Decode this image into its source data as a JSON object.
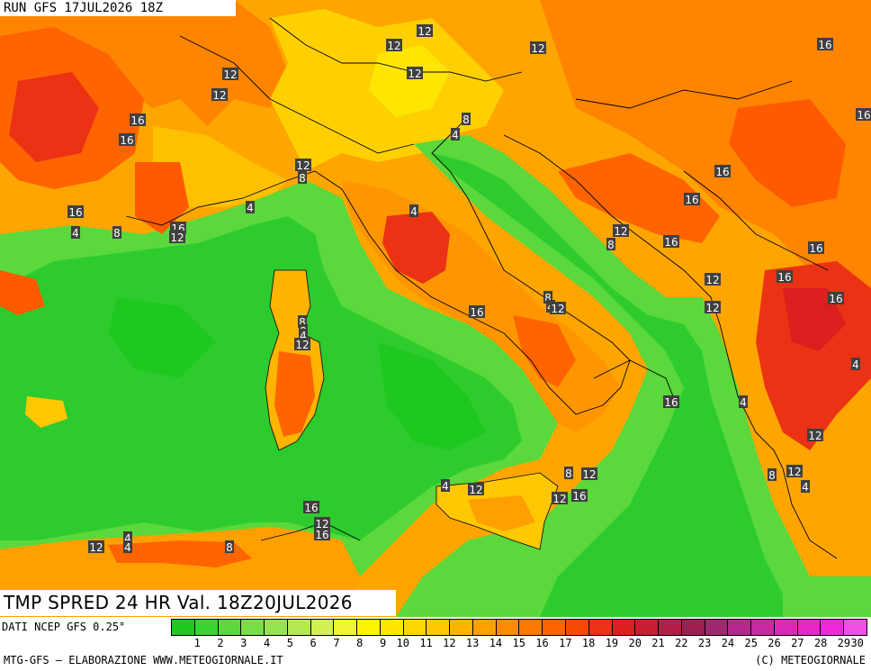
{
  "header": {
    "run_title": "RUN GFS 17JUL2026 18Z",
    "variable_title": "TMP SPRED 24 HR Val. 18Z20JUL2026"
  },
  "legend": {
    "source": "DATI NCEP GFS 0.25°",
    "values": [
      1,
      2,
      3,
      4,
      5,
      6,
      7,
      8,
      9,
      10,
      11,
      12,
      13,
      14,
      15,
      16,
      17,
      18,
      19,
      20,
      21,
      22,
      23,
      24,
      25,
      26,
      27,
      28,
      29,
      30
    ],
    "colors": [
      "#1ec81e",
      "#3cd232",
      "#5ad83c",
      "#78de46",
      "#96e450",
      "#b4ea50",
      "#d2f050",
      "#f0f532",
      "#fff500",
      "#ffe600",
      "#ffd700",
      "#ffc800",
      "#ffb400",
      "#ffa000",
      "#ff8c00",
      "#ff7800",
      "#ff6400",
      "#f54a00",
      "#eb3214",
      "#dc1e1e",
      "#c81e32",
      "#b41e46",
      "#a01e50",
      "#a0286e",
      "#b4288c",
      "#c828a0",
      "#dc28b4",
      "#e628c8",
      "#f028dc",
      "#f050e6"
    ]
  },
  "footer": {
    "left": "MTG-GFS — ELABORAZIONE WWW.METEOGIORNALE.IT",
    "right": "(C) METEOGIORNALE"
  },
  "contour_labels": [
    "12",
    "12",
    "12",
    "12",
    "12",
    "12",
    "16",
    "16",
    "16",
    "16",
    "12",
    "8",
    "4",
    "8",
    "4",
    "16",
    "4",
    "8",
    "16",
    "8",
    "4",
    "12",
    "4",
    "16",
    "16",
    "16",
    "12",
    "8",
    "16",
    "12",
    "16",
    "16",
    "12",
    "16",
    "8",
    "4",
    "12",
    "8",
    "8",
    "4",
    "12",
    "4",
    "16",
    "4",
    "12",
    "8",
    "12",
    "4",
    "8",
    "12",
    "12",
    "16",
    "12",
    "4",
    "16",
    "12",
    "16",
    "4",
    "4",
    "12",
    "8"
  ],
  "colors": {
    "sea_green": "#2ecb2e",
    "land_warm": "#ff9a00",
    "hot": "#ee2a10"
  }
}
